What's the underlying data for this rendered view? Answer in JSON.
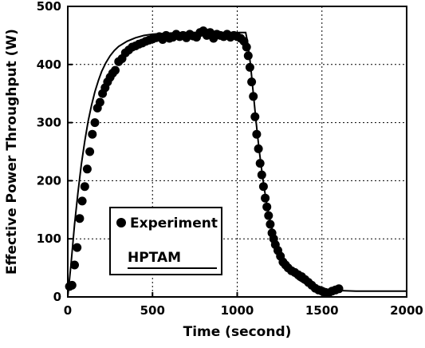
{
  "chart_data": {
    "type": "scatter",
    "title": "",
    "xlabel": "Time (second)",
    "ylabel": "Effective Power Throughput (W)",
    "xlim": [
      0,
      2000
    ],
    "ylim": [
      0,
      500
    ],
    "xticks": [
      0,
      500,
      1000,
      1500,
      2000
    ],
    "yticks": [
      0,
      100,
      200,
      300,
      400,
      500
    ],
    "grid": true,
    "legend": {
      "placement": "lower-left"
    },
    "series": [
      {
        "name": "Experiment",
        "kind": "scatter",
        "marker": "filled-circle",
        "color": "#000000",
        "points": [
          [
            10,
            18
          ],
          [
            25,
            20
          ],
          [
            40,
            55
          ],
          [
            55,
            85
          ],
          [
            70,
            135
          ],
          [
            85,
            165
          ],
          [
            100,
            190
          ],
          [
            115,
            220
          ],
          [
            130,
            250
          ],
          [
            145,
            280
          ],
          [
            160,
            300
          ],
          [
            175,
            325
          ],
          [
            190,
            335
          ],
          [
            205,
            350
          ],
          [
            220,
            360
          ],
          [
            235,
            370
          ],
          [
            250,
            378
          ],
          [
            265,
            385
          ],
          [
            280,
            390
          ],
          [
            300,
            405
          ],
          [
            320,
            410
          ],
          [
            340,
            420
          ],
          [
            360,
            425
          ],
          [
            380,
            430
          ],
          [
            400,
            432
          ],
          [
            420,
            435
          ],
          [
            440,
            437
          ],
          [
            460,
            440
          ],
          [
            480,
            442
          ],
          [
            500,
            444
          ],
          [
            520,
            446
          ],
          [
            540,
            448
          ],
          [
            560,
            443
          ],
          [
            580,
            450
          ],
          [
            600,
            445
          ],
          [
            620,
            447
          ],
          [
            640,
            452
          ],
          [
            660,
            448
          ],
          [
            680,
            450
          ],
          [
            700,
            446
          ],
          [
            720,
            452
          ],
          [
            740,
            449
          ],
          [
            760,
            447
          ],
          [
            780,
            455
          ],
          [
            800,
            458
          ],
          [
            820,
            450
          ],
          [
            840,
            455
          ],
          [
            860,
            445
          ],
          [
            880,
            452
          ],
          [
            900,
            450
          ],
          [
            920,
            448
          ],
          [
            940,
            452
          ],
          [
            960,
            447
          ],
          [
            980,
            450
          ],
          [
            1000,
            448
          ],
          [
            1020,
            445
          ],
          [
            1040,
            440
          ],
          [
            1055,
            430
          ],
          [
            1065,
            415
          ],
          [
            1075,
            395
          ],
          [
            1085,
            370
          ],
          [
            1095,
            345
          ],
          [
            1105,
            310
          ],
          [
            1115,
            280
          ],
          [
            1125,
            255
          ],
          [
            1135,
            230
          ],
          [
            1145,
            210
          ],
          [
            1155,
            190
          ],
          [
            1165,
            170
          ],
          [
            1175,
            155
          ],
          [
            1185,
            140
          ],
          [
            1195,
            125
          ],
          [
            1205,
            110
          ],
          [
            1215,
            100
          ],
          [
            1225,
            90
          ],
          [
            1240,
            80
          ],
          [
            1255,
            70
          ],
          [
            1270,
            60
          ],
          [
            1285,
            55
          ],
          [
            1300,
            50
          ],
          [
            1320,
            45
          ],
          [
            1340,
            42
          ],
          [
            1360,
            38
          ],
          [
            1380,
            35
          ],
          [
            1400,
            30
          ],
          [
            1420,
            25
          ],
          [
            1440,
            20
          ],
          [
            1460,
            15
          ],
          [
            1480,
            12
          ],
          [
            1500,
            10
          ],
          [
            1520,
            8
          ],
          [
            1540,
            7
          ],
          [
            1560,
            10
          ],
          [
            1580,
            12
          ],
          [
            1600,
            14
          ]
        ]
      },
      {
        "name": "HPTAM",
        "kind": "line",
        "color": "#000000",
        "points": [
          [
            0,
            0
          ],
          [
            20,
            60
          ],
          [
            40,
            125
          ],
          [
            60,
            180
          ],
          [
            80,
            228
          ],
          [
            100,
            268
          ],
          [
            120,
            302
          ],
          [
            140,
            330
          ],
          [
            160,
            353
          ],
          [
            180,
            372
          ],
          [
            200,
            388
          ],
          [
            225,
            403
          ],
          [
            250,
            415
          ],
          [
            275,
            424
          ],
          [
            300,
            431
          ],
          [
            350,
            440
          ],
          [
            400,
            446
          ],
          [
            450,
            450
          ],
          [
            500,
            452
          ],
          [
            600,
            454
          ],
          [
            700,
            455
          ],
          [
            800,
            455
          ],
          [
            900,
            455
          ],
          [
            1000,
            455
          ],
          [
            1050,
            455
          ],
          [
            1060,
            440
          ],
          [
            1070,
            420
          ],
          [
            1080,
            395
          ],
          [
            1090,
            365
          ],
          [
            1100,
            335
          ],
          [
            1110,
            305
          ],
          [
            1120,
            278
          ],
          [
            1130,
            252
          ],
          [
            1140,
            228
          ],
          [
            1150,
            206
          ],
          [
            1160,
            186
          ],
          [
            1170,
            168
          ],
          [
            1180,
            152
          ],
          [
            1190,
            137
          ],
          [
            1200,
            124
          ],
          [
            1220,
            102
          ],
          [
            1240,
            85
          ],
          [
            1260,
            70
          ],
          [
            1280,
            58
          ],
          [
            1300,
            49
          ],
          [
            1330,
            38
          ],
          [
            1360,
            30
          ],
          [
            1400,
            23
          ],
          [
            1450,
            17
          ],
          [
            1500,
            14
          ],
          [
            1550,
            12
          ],
          [
            1600,
            11
          ],
          [
            1700,
            10
          ],
          [
            1800,
            10
          ],
          [
            1900,
            10
          ],
          [
            2000,
            10
          ]
        ]
      }
    ]
  }
}
